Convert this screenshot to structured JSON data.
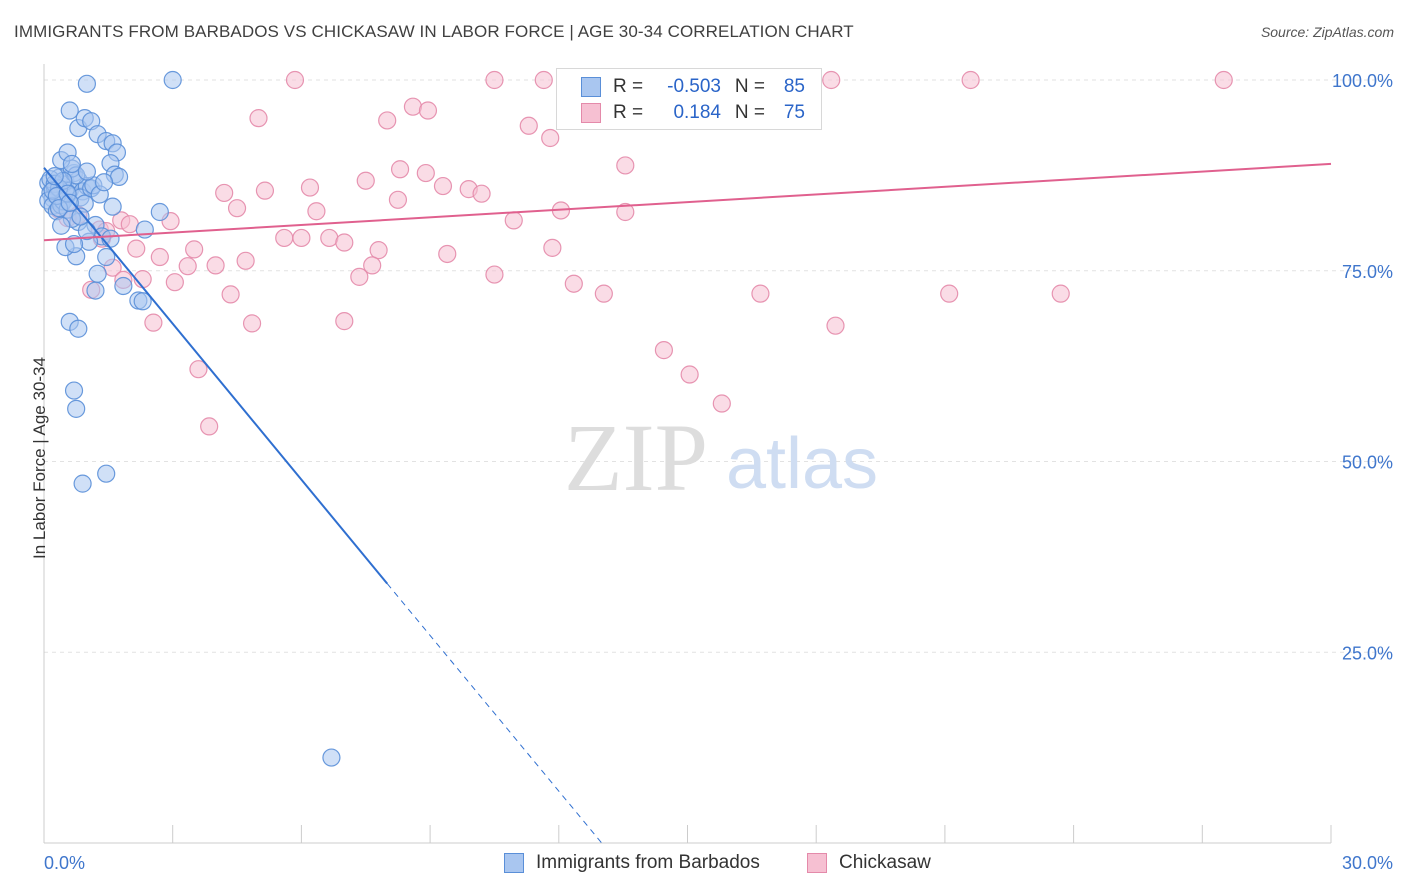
{
  "title": "IMMIGRANTS FROM BARBADOS VS CHICKASAW IN LABOR FORCE | AGE 30-34 CORRELATION CHART",
  "source": "Source: ZipAtlas.com",
  "watermark": {
    "zip": "ZIP",
    "atlas": "atlas"
  },
  "legend_top": {
    "rows": [
      {
        "r_label": "R =",
        "r_value": "-0.503",
        "n_label": "N =",
        "n_value": "85"
      },
      {
        "r_label": "R =",
        "r_value": "0.184",
        "n_label": "N =",
        "n_value": "75"
      }
    ]
  },
  "colors": {
    "blue_fill": "#a9c6f0",
    "blue_stroke": "#5a8fd8",
    "blue_line": "#2f6fd0",
    "pink_fill": "#f6c0d2",
    "pink_stroke": "#e48aaa",
    "pink_line": "#e0608e",
    "tick_label": "#3f76cc",
    "grid": "#e2e2e2"
  },
  "chart_data": {
    "type": "scatter",
    "title": "IMMIGRANTS FROM BARBADOS VS CHICKASAW IN LABOR FORCE | AGE 30-34 CORRELATION CHART",
    "xlabel": "",
    "ylabel": "In Labor Force | Age 30-34",
    "xlim": [
      0,
      30
    ],
    "ylim": [
      0,
      105
    ],
    "x_tick_labels": [
      "0.0%",
      "30.0%"
    ],
    "y_tick_labels": [
      "25.0%",
      "50.0%",
      "75.0%",
      "100.0%"
    ],
    "y_ticks": [
      25,
      50,
      75,
      100
    ],
    "grid": true,
    "legend_placement": "bottom",
    "series": [
      {
        "name": "Immigrants from Barbados",
        "color": "#a9c6f0",
        "stats": {
          "R": -0.503,
          "N": 85
        },
        "trend": {
          "x0": 0,
          "y0": 88.5,
          "x1": 8.0,
          "y1": 34.0,
          "dash_x1": 13.0,
          "dash_y1": 0
        },
        "points": [
          [
            0.1,
            86.5
          ],
          [
            0.15,
            85.2
          ],
          [
            0.2,
            84.5
          ],
          [
            0.25,
            86.0
          ],
          [
            0.3,
            85.0
          ],
          [
            0.35,
            87.2
          ],
          [
            0.4,
            84.0
          ],
          [
            0.45,
            86.3
          ],
          [
            0.5,
            85.6
          ],
          [
            0.55,
            84.9
          ],
          [
            0.1,
            84.2
          ],
          [
            0.2,
            83.5
          ],
          [
            0.3,
            82.8
          ],
          [
            0.4,
            83.6
          ],
          [
            0.5,
            86.7
          ],
          [
            0.6,
            85.5
          ],
          [
            0.7,
            87.8
          ],
          [
            0.8,
            86.9
          ],
          [
            0.9,
            85.4
          ],
          [
            1.0,
            86.1
          ],
          [
            0.15,
            87.0
          ],
          [
            0.25,
            86.4
          ],
          [
            0.35,
            85.8
          ],
          [
            0.45,
            84.1
          ],
          [
            0.55,
            83.0
          ],
          [
            0.65,
            88.4
          ],
          [
            0.75,
            87.5
          ],
          [
            0.85,
            84.6
          ],
          [
            0.95,
            83.8
          ],
          [
            1.1,
            85.8
          ],
          [
            0.4,
            89.5
          ],
          [
            0.55,
            90.5
          ],
          [
            0.65,
            89.0
          ],
          [
            0.8,
            93.7
          ],
          [
            0.95,
            95.0
          ],
          [
            1.1,
            94.6
          ],
          [
            1.25,
            92.9
          ],
          [
            1.45,
            92.0
          ],
          [
            1.6,
            91.7
          ],
          [
            1.7,
            90.5
          ],
          [
            0.6,
            96.0
          ],
          [
            1.0,
            99.5
          ],
          [
            3.0,
            100.0
          ],
          [
            1.55,
            89.1
          ],
          [
            1.65,
            87.6
          ],
          [
            1.75,
            87.3
          ],
          [
            1.15,
            86.2
          ],
          [
            1.3,
            85.0
          ],
          [
            2.7,
            82.7
          ],
          [
            1.0,
            88.0
          ],
          [
            0.8,
            81.4
          ],
          [
            0.65,
            81.8
          ],
          [
            0.4,
            80.9
          ],
          [
            1.2,
            81.0
          ],
          [
            1.35,
            79.5
          ],
          [
            1.55,
            79.2
          ],
          [
            1.45,
            76.8
          ],
          [
            1.25,
            74.6
          ],
          [
            0.75,
            76.9
          ],
          [
            1.85,
            73.0
          ],
          [
            2.2,
            71.1
          ],
          [
            2.3,
            71.0
          ],
          [
            1.2,
            72.4
          ],
          [
            0.6,
            68.3
          ],
          [
            0.8,
            67.4
          ],
          [
            2.35,
            80.4
          ],
          [
            1.05,
            78.8
          ],
          [
            0.5,
            78.1
          ],
          [
            0.7,
            78.5
          ],
          [
            1.0,
            80.2
          ],
          [
            0.7,
            59.3
          ],
          [
            0.75,
            56.9
          ],
          [
            1.45,
            48.4
          ],
          [
            0.9,
            47.1
          ],
          [
            6.7,
            11.2
          ],
          [
            0.2,
            85.5
          ],
          [
            0.3,
            84.8
          ],
          [
            0.45,
            86.8
          ],
          [
            0.55,
            85.1
          ],
          [
            0.35,
            83.2
          ],
          [
            1.6,
            83.4
          ],
          [
            0.25,
            87.4
          ],
          [
            0.85,
            82.1
          ],
          [
            1.4,
            86.6
          ],
          [
            0.6,
            83.9
          ]
        ]
      },
      {
        "name": "Chickasaw",
        "color": "#f6c0d2",
        "stats": {
          "R": 0.184,
          "N": 75
        },
        "trend": {
          "x0": 0,
          "y0": 79.0,
          "x1": 30,
          "y1": 89.0
        },
        "points": [
          [
            5.85,
            100.0
          ],
          [
            10.5,
            100.0
          ],
          [
            11.65,
            100.0
          ],
          [
            16.6,
            100.0
          ],
          [
            18.35,
            100.0
          ],
          [
            21.6,
            100.0
          ],
          [
            27.5,
            100.0
          ],
          [
            17.2,
            100.0
          ],
          [
            8.6,
            96.5
          ],
          [
            8.95,
            96.0
          ],
          [
            5.0,
            95.0
          ],
          [
            8.0,
            94.7
          ],
          [
            11.3,
            94.0
          ],
          [
            11.8,
            92.4
          ],
          [
            13.55,
            88.8
          ],
          [
            8.3,
            88.3
          ],
          [
            8.9,
            87.8
          ],
          [
            7.5,
            86.8
          ],
          [
            9.3,
            86.1
          ],
          [
            9.9,
            85.7
          ],
          [
            10.2,
            85.1
          ],
          [
            6.2,
            85.9
          ],
          [
            5.15,
            85.5
          ],
          [
            4.2,
            85.2
          ],
          [
            8.25,
            84.3
          ],
          [
            4.5,
            83.2
          ],
          [
            6.35,
            82.8
          ],
          [
            12.05,
            82.9
          ],
          [
            13.55,
            82.7
          ],
          [
            10.95,
            81.6
          ],
          [
            2.95,
            81.5
          ],
          [
            1.8,
            81.6
          ],
          [
            1.3,
            80.4
          ],
          [
            1.35,
            79.2
          ],
          [
            5.6,
            79.3
          ],
          [
            6.0,
            79.3
          ],
          [
            6.65,
            79.3
          ],
          [
            7.0,
            78.7
          ],
          [
            7.8,
            77.7
          ],
          [
            11.85,
            78.0
          ],
          [
            9.4,
            77.2
          ],
          [
            3.5,
            77.8
          ],
          [
            2.15,
            77.9
          ],
          [
            1.6,
            75.4
          ],
          [
            2.7,
            76.8
          ],
          [
            4.7,
            76.3
          ],
          [
            3.35,
            75.6
          ],
          [
            4.0,
            75.7
          ],
          [
            7.65,
            75.7
          ],
          [
            1.85,
            73.8
          ],
          [
            1.1,
            72.5
          ],
          [
            2.3,
            73.9
          ],
          [
            3.05,
            73.5
          ],
          [
            7.35,
            74.2
          ],
          [
            10.5,
            74.5
          ],
          [
            12.35,
            73.3
          ],
          [
            4.35,
            71.9
          ],
          [
            13.05,
            72.0
          ],
          [
            16.7,
            72.0
          ],
          [
            21.1,
            72.0
          ],
          [
            23.7,
            72.0
          ],
          [
            4.85,
            68.1
          ],
          [
            7.0,
            68.4
          ],
          [
            2.55,
            68.2
          ],
          [
            18.45,
            67.8
          ],
          [
            14.45,
            64.6
          ],
          [
            15.05,
            61.4
          ],
          [
            3.6,
            62.1
          ],
          [
            15.8,
            57.6
          ],
          [
            3.85,
            54.6
          ],
          [
            0.35,
            83.0
          ],
          [
            0.8,
            82.3
          ],
          [
            1.45,
            80.2
          ],
          [
            2.0,
            81.1
          ],
          [
            0.55,
            81.9
          ]
        ]
      }
    ]
  },
  "legend_bottom": {
    "items": [
      "Immigrants from Barbados",
      "Chickasaw"
    ]
  }
}
